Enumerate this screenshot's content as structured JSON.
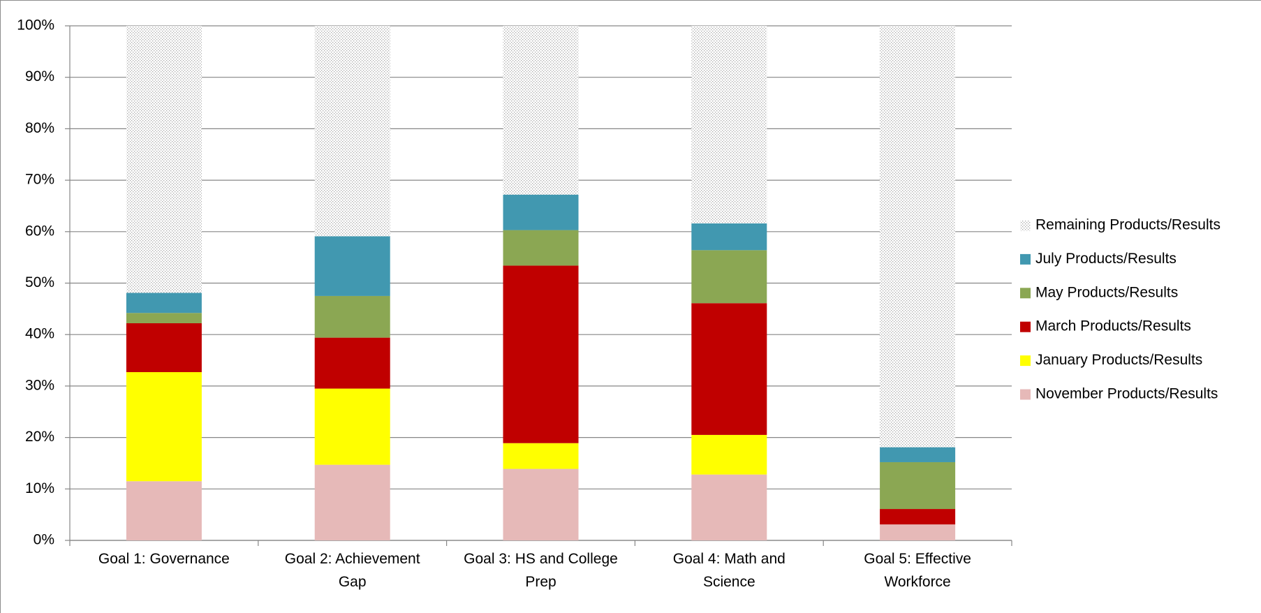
{
  "chart_data": {
    "type": "stacked_bar",
    "categories": [
      "Goal 1: Governance",
      "Goal 2: Achievement Gap",
      "Goal 3: HS and College Prep",
      "Goal 4: Math and Science",
      "Goal 5: Effective Workforce"
    ],
    "series": [
      {
        "name": "November Products/Results",
        "color": "#e6b9b8",
        "values": [
          11.5,
          14.7,
          13.9,
          12.8,
          3.1
        ]
      },
      {
        "name": "January Products/Results",
        "color": "#ffff00",
        "values": [
          21.2,
          14.8,
          5.0,
          7.7,
          0
        ]
      },
      {
        "name": "March Products/Results",
        "color": "#c00000",
        "values": [
          9.5,
          9.9,
          34.5,
          25.6,
          3.0
        ]
      },
      {
        "name": "May Products/Results",
        "color": "#8ba753",
        "values": [
          2.0,
          8.1,
          6.9,
          10.3,
          9.1
        ]
      },
      {
        "name": "July Products/Results",
        "color": "#4198b0",
        "values": [
          3.9,
          11.6,
          6.9,
          5.2,
          2.9
        ]
      },
      {
        "name": "Remaining Products/Results",
        "color": "#a6a6a6",
        "pattern": "dots",
        "values": [
          51.9,
          40.9,
          32.8,
          38.4,
          81.9
        ]
      }
    ],
    "ylim": [
      0,
      100
    ],
    "yticks": [
      {
        "value": 0,
        "label": "0%"
      },
      {
        "value": 10,
        "label": "10%"
      },
      {
        "value": 20,
        "label": "20%"
      },
      {
        "value": 30,
        "label": "30%"
      },
      {
        "value": 40,
        "label": "40%"
      },
      {
        "value": 50,
        "label": "50%"
      },
      {
        "value": 60,
        "label": "60%"
      },
      {
        "value": 70,
        "label": "70%"
      },
      {
        "value": 80,
        "label": "80%"
      },
      {
        "value": 90,
        "label": "90%"
      },
      {
        "value": 100,
        "label": "100%"
      }
    ],
    "grid": true,
    "legend": "right"
  }
}
